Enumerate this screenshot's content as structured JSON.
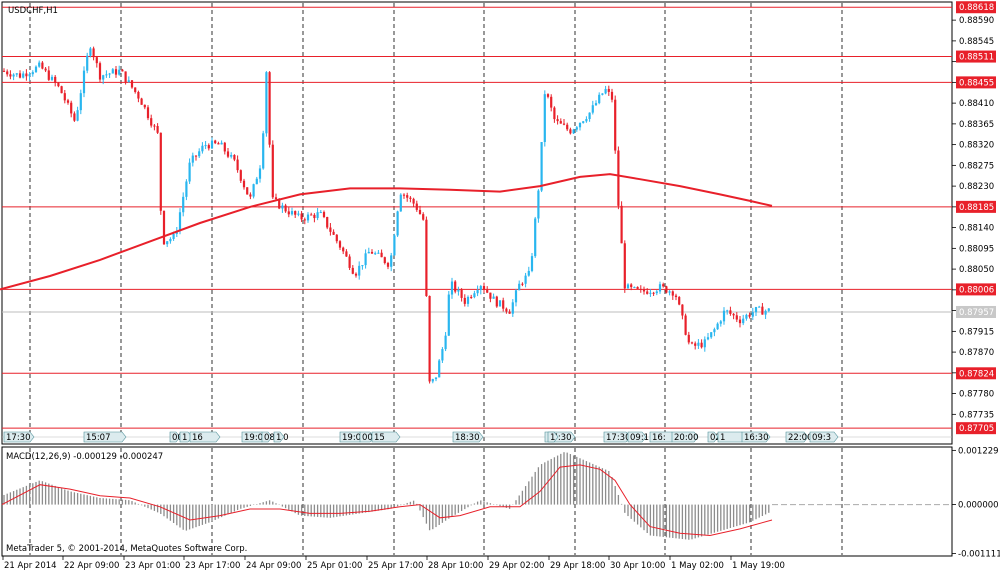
{
  "chart_data": {
    "type": "candlestick",
    "symbol_label": "USDCHF,H1",
    "indicator_label": "MACD(12,26,9) -0.000129 -0.000247",
    "copyright": "MetaTrader 5, © 2001-2014, MetaQuotes Software Corp.",
    "colors": {
      "bull": "#29b6ef",
      "bear": "#e8202a",
      "ma": "#e8202a",
      "level": "#e8202a",
      "grid": "#000000",
      "histogram": "#8c8c8c",
      "signal": "#e8202a"
    },
    "price_axis": {
      "min": 0.87675,
      "max": 0.88625,
      "ticks": [
        "0.88590",
        "0.88545",
        "0.88500",
        "0.88455",
        "0.88410",
        "0.88365",
        "0.88320",
        "0.88275",
        "0.88230",
        "0.88185",
        "0.88140",
        "0.88095",
        "0.88050",
        "0.88005",
        "0.87960",
        "0.87915",
        "0.87870",
        "0.87825",
        "0.87780",
        "0.87735"
      ]
    },
    "hlines": [
      {
        "value": 0.88618,
        "label": "0.88618"
      },
      {
        "value": 0.88511,
        "label": "0.88511"
      },
      {
        "value": 0.88455,
        "label": "0.88455"
      },
      {
        "value": 0.88185,
        "label": "0.88185"
      },
      {
        "value": 0.88006,
        "label": "0.88006"
      },
      {
        "value": 0.87824,
        "label": "0.87824"
      },
      {
        "value": 0.87705,
        "label": "0.87705"
      }
    ],
    "current_price": {
      "value": 0.87957,
      "label": "0.87957"
    },
    "macd_axis": {
      "min": -0.00112,
      "max": 0.00126,
      "ticks": [
        "0.001229",
        "0.000000",
        "-0.001111"
      ]
    },
    "x_labels": [
      "21 Apr 2014",
      "22 Apr 09:00",
      "23 Apr 01:00",
      "23 Apr 17:00",
      "24 Apr 09:00",
      "25 Apr 01:00",
      "25 Apr 17:00",
      "28 Apr 10:00",
      "29 Apr 02:00",
      "29 Apr 18:00",
      "30 Apr 10:00",
      "1 May 02:00",
      "1 May 19:00"
    ],
    "event_tags": [
      "17:30",
      "15:07",
      "00",
      "1",
      "16",
      "19:00",
      "08:00",
      "1",
      "19:00",
      "00:00",
      "15",
      "18:30",
      "17:30",
      "1",
      "17:30",
      "09:1",
      "16:",
      "20:00",
      "02:00",
      "1",
      "16:30",
      "22:00",
      "09:3",
      "16:00"
    ],
    "ma_points": [
      [
        0,
        0.88006
      ],
      [
        50,
        0.88035
      ],
      [
        100,
        0.8807
      ],
      [
        150,
        0.8811
      ],
      [
        200,
        0.8815
      ],
      [
        250,
        0.88185
      ],
      [
        300,
        0.88212
      ],
      [
        350,
        0.88225
      ],
      [
        400,
        0.88225
      ],
      [
        450,
        0.88222
      ],
      [
        500,
        0.88218
      ],
      [
        540,
        0.8823
      ],
      [
        580,
        0.8825
      ],
      [
        610,
        0.88256
      ],
      [
        640,
        0.88245
      ],
      [
        680,
        0.8823
      ],
      [
        720,
        0.88212
      ],
      [
        750,
        0.88198
      ],
      [
        772,
        0.88187
      ]
    ],
    "price_path": [
      [
        2,
        0.8848
      ],
      [
        20,
        0.8847
      ],
      [
        40,
        0.8849
      ],
      [
        60,
        0.8844
      ],
      [
        75,
        0.8837
      ],
      [
        90,
        0.8854
      ],
      [
        100,
        0.8847
      ],
      [
        120,
        0.8848
      ],
      [
        140,
        0.8842
      ],
      [
        158,
        0.8834
      ],
      [
        162,
        0.8811
      ],
      [
        175,
        0.8812
      ],
      [
        190,
        0.8828
      ],
      [
        205,
        0.8832
      ],
      [
        220,
        0.8832
      ],
      [
        235,
        0.8828
      ],
      [
        250,
        0.882
      ],
      [
        262,
        0.8829
      ],
      [
        266,
        0.885
      ],
      [
        272,
        0.882
      ],
      [
        285,
        0.8818
      ],
      [
        300,
        0.8816
      ],
      [
        320,
        0.8817
      ],
      [
        340,
        0.881
      ],
      [
        355,
        0.8804
      ],
      [
        370,
        0.8809
      ],
      [
        390,
        0.8806
      ],
      [
        400,
        0.8822
      ],
      [
        415,
        0.8819
      ],
      [
        425,
        0.8815
      ],
      [
        428,
        0.878
      ],
      [
        435,
        0.8781
      ],
      [
        445,
        0.879
      ],
      [
        450,
        0.8802
      ],
      [
        465,
        0.8798
      ],
      [
        480,
        0.8802
      ],
      [
        495,
        0.8798
      ],
      [
        510,
        0.8796
      ],
      [
        520,
        0.8802
      ],
      [
        530,
        0.8804
      ],
      [
        540,
        0.8826
      ],
      [
        545,
        0.8844
      ],
      [
        555,
        0.8837
      ],
      [
        570,
        0.8835
      ],
      [
        590,
        0.8839
      ],
      [
        605,
        0.8844
      ],
      [
        612,
        0.8842
      ],
      [
        618,
        0.882
      ],
      [
        625,
        0.8801
      ],
      [
        640,
        0.88
      ],
      [
        660,
        0.8801
      ],
      [
        675,
        0.88
      ],
      [
        690,
        0.8788
      ],
      [
        705,
        0.8789
      ],
      [
        715,
        0.8792
      ],
      [
        725,
        0.8796
      ],
      [
        740,
        0.8794
      ],
      [
        755,
        0.8796
      ],
      [
        770,
        0.8796
      ]
    ],
    "macd_hist": [
      [
        2,
        0.0002
      ],
      [
        40,
        0.00055
      ],
      [
        70,
        0.0003
      ],
      [
        100,
        0.00015
      ],
      [
        130,
        0.0001
      ],
      [
        160,
        -0.0002
      ],
      [
        185,
        -0.0006
      ],
      [
        210,
        -0.0004
      ],
      [
        240,
        -0.0001
      ],
      [
        270,
        0.0001
      ],
      [
        300,
        -0.00025
      ],
      [
        330,
        -0.0003
      ],
      [
        360,
        -0.0002
      ],
      [
        390,
        -0.0001
      ],
      [
        415,
        0.0001
      ],
      [
        430,
        -0.0006
      ],
      [
        450,
        -0.0003
      ],
      [
        480,
        0.0001
      ],
      [
        510,
        -0.0001
      ],
      [
        540,
        0.0009
      ],
      [
        565,
        0.0012
      ],
      [
        590,
        0.00095
      ],
      [
        610,
        0.00075
      ],
      [
        625,
        -0.0002
      ],
      [
        650,
        -0.0007
      ],
      [
        690,
        -0.0008
      ],
      [
        720,
        -0.0006
      ],
      [
        750,
        -0.0004
      ],
      [
        772,
        -0.00015
      ]
    ],
    "macd_signal": [
      [
        2,
        0.0
      ],
      [
        40,
        0.00045
      ],
      [
        70,
        0.00035
      ],
      [
        100,
        0.0002
      ],
      [
        130,
        0.00015
      ],
      [
        160,
        -5e-05
      ],
      [
        190,
        -0.00035
      ],
      [
        220,
        -0.00025
      ],
      [
        250,
        -0.0001
      ],
      [
        280,
        -0.0001
      ],
      [
        310,
        -0.0002
      ],
      [
        340,
        -0.0002
      ],
      [
        370,
        -0.00015
      ],
      [
        400,
        -5e-05
      ],
      [
        420,
        0.0
      ],
      [
        440,
        -0.0003
      ],
      [
        460,
        -0.00025
      ],
      [
        490,
        -5e-05
      ],
      [
        520,
        -5e-05
      ],
      [
        540,
        0.0003
      ],
      [
        560,
        0.00085
      ],
      [
        580,
        0.0009
      ],
      [
        600,
        0.0008
      ],
      [
        615,
        0.00055
      ],
      [
        630,
        0.0
      ],
      [
        650,
        -0.0005
      ],
      [
        680,
        -0.00065
      ],
      [
        710,
        -0.0007
      ],
      [
        740,
        -0.00055
      ],
      [
        772,
        -0.00035
      ]
    ]
  }
}
